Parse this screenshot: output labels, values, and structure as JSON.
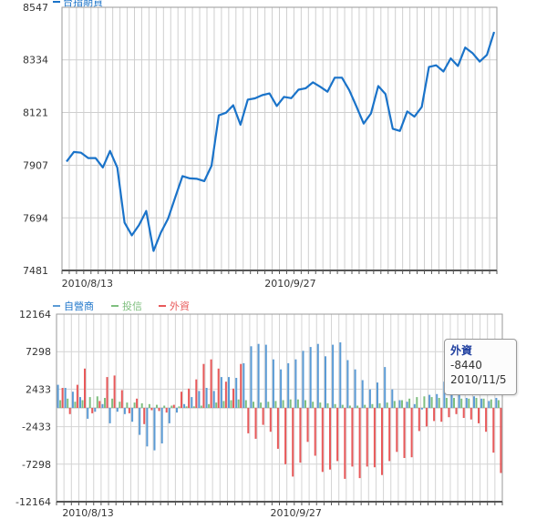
{
  "chart_data": [
    {
      "type": "line",
      "title": "台指期貨",
      "legend": [
        {
          "name": "台指期貨",
          "color": "#1a73c9"
        }
      ],
      "y_ticks": [
        "8547",
        "8334",
        "8121",
        "7907",
        "7694",
        "7481"
      ],
      "ylim": [
        7481,
        8547
      ],
      "x_ticks": [
        {
          "label": "2010/8/13",
          "index": 3
        },
        {
          "label": "2010/9/27",
          "index": 31
        }
      ],
      "series": [
        {
          "name": "台指期貨",
          "color": "#1a73c9",
          "values": [
            7922,
            7961,
            7958,
            7936,
            7936,
            7898,
            7965,
            7897,
            7675,
            7623,
            7665,
            7722,
            7560,
            7634,
            7690,
            7778,
            7863,
            7854,
            7852,
            7843,
            7905,
            8109,
            8120,
            8150,
            8071,
            8173,
            8178,
            8191,
            8198,
            8147,
            8184,
            8179,
            8213,
            8219,
            8243,
            8225,
            8205,
            8262,
            8262,
            8211,
            8145,
            8076,
            8117,
            8228,
            8196,
            8055,
            8046,
            8125,
            8104,
            8143,
            8305,
            8312,
            8287,
            8340,
            8309,
            8384,
            8362,
            8327,
            8354,
            8447
          ]
        }
      ],
      "grid": true
    },
    {
      "type": "bar",
      "legend": [
        {
          "name": "自營商",
          "color": "#5b9bd5"
        },
        {
          "name": "投信",
          "color": "#7fbf7f"
        },
        {
          "name": "外資",
          "color": "#e8595a"
        }
      ],
      "y_ticks": [
        "12164",
        "7298",
        "2433",
        "-2433",
        "-7298",
        "-12164"
      ],
      "ylim": [
        -12164,
        12164
      ],
      "x_ticks": [
        {
          "label": "2010/8/13",
          "index": 3
        },
        {
          "label": "2010/9/27",
          "index": 31
        }
      ],
      "series": [
        {
          "name": "自營商",
          "color": "#5b9bd5",
          "values": [
            3000,
            2600,
            2100,
            1400,
            -1400,
            -500,
            500,
            -2000,
            -500,
            -800,
            -1800,
            -3500,
            -5000,
            -5500,
            -4600,
            -2000,
            -600,
            500,
            1400,
            2200,
            2600,
            2200,
            4000,
            4000,
            3900,
            5800,
            8000,
            8300,
            8200,
            6300,
            5000,
            5800,
            6300,
            7400,
            7900,
            8300,
            6700,
            8200,
            8500,
            6200,
            5000,
            3600,
            2400,
            3300,
            5300,
            2400,
            1000,
            800,
            500,
            -200,
            1700,
            1800,
            3400,
            4400,
            3700,
            1300,
            1500,
            1200,
            900,
            1300
          ]
        },
        {
          "name": "投信",
          "color": "#7fbf7f",
          "values": [
            1000,
            1200,
            800,
            1000,
            1400,
            1500,
            1300,
            1200,
            800,
            700,
            700,
            600,
            500,
            400,
            300,
            300,
            200,
            200,
            200,
            300,
            500,
            700,
            900,
            1000,
            1100,
            1000,
            800,
            700,
            800,
            900,
            1000,
            1100,
            1100,
            1000,
            800,
            700,
            600,
            500,
            400,
            300,
            300,
            400,
            500,
            600,
            700,
            900,
            1000,
            1200,
            1400,
            1500,
            1400,
            1300,
            1300,
            1300,
            1200,
            1200,
            1300,
            1200,
            1100,
            1000
          ]
        },
        {
          "name": "外資",
          "color": "#e8595a",
          "values": [
            2600,
            -800,
            3000,
            5100,
            -700,
            900,
            4000,
            4200,
            2300,
            -700,
            1200,
            -2100,
            -300,
            -400,
            -600,
            400,
            2100,
            2500,
            3700,
            5700,
            6300,
            5100,
            3400,
            2500,
            5700,
            -3300,
            -4000,
            -2200,
            -3100,
            -5300,
            -7300,
            -8900,
            -7100,
            -4400,
            -6200,
            -8300,
            -8000,
            -6900,
            -9200,
            -7600,
            -9100,
            -7600,
            -7700,
            -8700,
            -6900,
            -5700,
            -6500,
            -6400,
            -3000,
            -2400,
            -1700,
            -1800,
            -1200,
            -800,
            -1300,
            -1500,
            -2000,
            -3100,
            -5800,
            -8440
          ]
        }
      ],
      "grid": true
    }
  ],
  "tooltip": {
    "name": "外資",
    "value": "-8440",
    "date": "2010/11/5"
  }
}
